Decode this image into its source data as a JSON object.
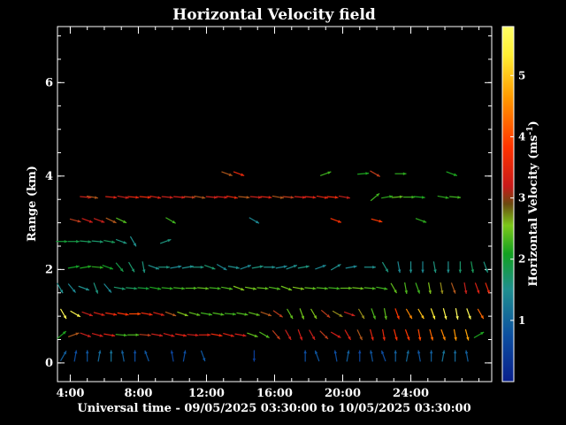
{
  "chart_data": {
    "type": "scatter",
    "title": "Horizontal Velocity field",
    "xlabel": "Universal time - 09/05/2025 03:30:00 to 10/05/2025 03:30:00",
    "ylabel": "Range (km)",
    "colorbar_label": "Horizontal Velocity (ms",
    "colorbar_label_sup": "-1",
    "colorbar_label_end": ")",
    "x_ticks": [
      {
        "value": 4,
        "label": "4:00"
      },
      {
        "value": 8,
        "label": "8:00"
      },
      {
        "value": 12,
        "label": "12:00"
      },
      {
        "value": 16,
        "label": "16:00"
      },
      {
        "value": 20,
        "label": "20:00"
      },
      {
        "value": 24,
        "label": "24:00"
      }
    ],
    "y_ticks": [
      {
        "value": 0,
        "label": "0"
      },
      {
        "value": 2,
        "label": "2"
      },
      {
        "value": 4,
        "label": "4"
      },
      {
        "value": 6,
        "label": "6"
      }
    ],
    "colorbar_ticks": [
      {
        "value": 1,
        "label": "1"
      },
      {
        "value": 2,
        "label": "2"
      },
      {
        "value": 3,
        "label": "3"
      },
      {
        "value": 4,
        "label": "4"
      },
      {
        "value": 5,
        "label": "5"
      }
    ],
    "xlim": [
      3.25,
      28.75
    ],
    "ylim": [
      -0.4,
      7.2
    ],
    "clim": [
      0,
      5.8
    ],
    "grid": false,
    "colors": {
      "background": "#000000",
      "axes": "#ffffff",
      "colormap": [
        "#0a1f8c",
        "#0c4fa0",
        "#1f8f8f",
        "#12a020",
        "#7cc81a",
        "#c81a1a",
        "#ff3300",
        "#ff9900",
        "#ffee33",
        "#ffff66"
      ]
    },
    "arrow_rows": [
      {
        "range": 4.05,
        "x": [
          13.2,
          13.9,
          19.0,
          21.2,
          21.9,
          23.4,
          26.4
        ],
        "speed": [
          3.0,
          3.6,
          2.2,
          2.0,
          3.1,
          2.1,
          2.0
        ],
        "dir_deg": [
          -20,
          -20,
          20,
          5,
          -30,
          0,
          -20
        ]
      },
      {
        "range": 3.55,
        "x": [
          4.9,
          5.3,
          6.4,
          7.1,
          7.7,
          8.4,
          9.0,
          9.7,
          10.4,
          11.0,
          11.6,
          12.3,
          12.9,
          13.5,
          14.2,
          14.9,
          15.5,
          16.2,
          16.8,
          17.5,
          18.1,
          18.8,
          19.4,
          20.1,
          21.9,
          22.6,
          23.2,
          23.9,
          24.5,
          25.9,
          26.6
        ],
        "speed": [
          3.2,
          3.0,
          3.4,
          3.2,
          3.5,
          3.6,
          3.4,
          3.2,
          3.3,
          3.1,
          3.0,
          3.2,
          3.3,
          3.6,
          3.0,
          3.2,
          3.4,
          3.0,
          3.1,
          3.3,
          3.4,
          3.5,
          3.6,
          3.2,
          2.2,
          2.1,
          2.4,
          2.2,
          2.0,
          2.1,
          2.2
        ],
        "dir_deg": [
          -5,
          -10,
          -5,
          -10,
          -5,
          -5,
          -10,
          -5,
          -5,
          -5,
          -10,
          -5,
          -5,
          -10,
          -5,
          -5,
          -5,
          -10,
          -5,
          -5,
          -5,
          -10,
          -5,
          -10,
          40,
          10,
          5,
          0,
          -5,
          -10,
          -5
        ]
      },
      {
        "range": 3.05,
        "x": [
          4.3,
          5.0,
          5.7,
          6.4,
          7.0,
          9.9,
          14.8,
          19.6,
          22.0,
          24.6
        ],
        "speed": [
          3.1,
          3.3,
          3.2,
          3.0,
          2.3,
          2.2,
          1.2,
          3.8,
          3.9,
          2.1
        ],
        "dir_deg": [
          -15,
          -20,
          -20,
          -25,
          -25,
          -30,
          -30,
          -20,
          -15,
          -20
        ]
      },
      {
        "range": 2.6,
        "x": [
          3.5,
          4.2,
          4.9,
          5.6,
          6.3,
          7.0,
          7.7,
          9.6
        ],
        "speed": [
          1.8,
          1.7,
          1.6,
          1.5,
          1.6,
          1.4,
          1.3,
          1.4
        ],
        "dir_deg": [
          0,
          0,
          -5,
          -5,
          -10,
          -20,
          -60,
          20
        ]
      },
      {
        "range": 2.05,
        "x": [
          4.2,
          4.9,
          5.6,
          6.2,
          6.9,
          7.6,
          8.3,
          8.9,
          9.5,
          10.2,
          10.9,
          11.5,
          12.2,
          12.9,
          13.6,
          14.3,
          15.0,
          15.7,
          16.4,
          17.0,
          17.7,
          18.7,
          19.6,
          20.5,
          21.6,
          22.5,
          23.3,
          24.0,
          24.7,
          25.4,
          26.2,
          26.9,
          27.6,
          28.4
        ],
        "speed": [
          1.9,
          2.0,
          2.1,
          1.9,
          1.7,
          1.5,
          1.4,
          1.3,
          1.4,
          1.2,
          1.3,
          1.4,
          1.5,
          1.2,
          1.3,
          1.2,
          1.4,
          1.3,
          1.2,
          1.3,
          1.4,
          1.2,
          1.3,
          1.2,
          1.3,
          1.4,
          1.2,
          1.3,
          1.2,
          1.4,
          1.3,
          1.5,
          1.6,
          1.4
        ],
        "dir_deg": [
          10,
          10,
          -5,
          -20,
          -50,
          -60,
          -80,
          -20,
          0,
          10,
          10,
          0,
          -20,
          -30,
          -10,
          20,
          10,
          0,
          10,
          20,
          10,
          20,
          30,
          10,
          0,
          -60,
          -80,
          -90,
          -90,
          -80,
          -90,
          -90,
          -80,
          -70
        ]
      },
      {
        "range": 1.6,
        "x": [
          3.4,
          4.1,
          4.8,
          5.5,
          6.2,
          6.9,
          7.6,
          8.3,
          9.0,
          9.7,
          10.4,
          11.1,
          11.8,
          12.5,
          13.2,
          13.9,
          14.6,
          15.3,
          16.0,
          16.7,
          17.4,
          18.1,
          18.8,
          19.5,
          20.2,
          20.9,
          21.6,
          22.3,
          23.0,
          23.7,
          24.4,
          25.1,
          25.8,
          26.5,
          27.2,
          27.9,
          28.5
        ],
        "speed": [
          1.3,
          1.2,
          1.3,
          1.4,
          1.2,
          1.5,
          1.6,
          1.8,
          2.0,
          2.1,
          2.2,
          2.3,
          2.4,
          2.2,
          2.3,
          2.6,
          2.5,
          2.4,
          2.3,
          2.5,
          2.6,
          2.4,
          2.3,
          2.2,
          2.4,
          2.5,
          2.3,
          2.2,
          2.4,
          2.3,
          2.2,
          2.6,
          2.8,
          3.0,
          3.2,
          3.4,
          3.6
        ],
        "dir_deg": [
          -60,
          -50,
          -20,
          -70,
          -50,
          -10,
          -5,
          -5,
          -10,
          -5,
          -5,
          0,
          -5,
          -5,
          -10,
          -20,
          -10,
          -5,
          -10,
          -20,
          -10,
          -5,
          -5,
          -5,
          0,
          -5,
          -5,
          -10,
          -60,
          -80,
          -70,
          -80,
          -80,
          -70,
          -80,
          -70,
          -70
        ]
      },
      {
        "range": 1.05,
        "x": [
          3.6,
          4.3,
          5.0,
          5.7,
          6.4,
          7.1,
          7.8,
          8.5,
          9.2,
          9.9,
          10.6,
          11.3,
          12.0,
          12.7,
          13.4,
          14.1,
          14.8,
          15.5,
          16.2,
          16.9,
          17.6,
          18.3,
          19.0,
          19.7,
          20.4,
          21.1,
          21.8,
          22.5,
          23.2,
          23.9,
          24.6,
          25.3,
          26.0,
          26.7,
          27.4,
          28.1
        ],
        "speed": [
          5.6,
          5.5,
          3.2,
          3.4,
          3.6,
          3.8,
          4.0,
          3.6,
          3.4,
          3.0,
          2.6,
          2.4,
          2.2,
          2.3,
          2.2,
          2.3,
          2.4,
          3.0,
          3.1,
          2.4,
          2.5,
          2.6,
          3.1,
          2.8,
          3.2,
          2.8,
          2.3,
          2.4,
          3.9,
          4.4,
          4.8,
          5.2,
          5.5,
          5.7,
          5.6,
          4.2
        ],
        "dir_deg": [
          -60,
          -30,
          -20,
          -15,
          -10,
          -10,
          0,
          -10,
          -15,
          -20,
          -20,
          -15,
          -10,
          -10,
          -5,
          -10,
          -15,
          -20,
          -35,
          -60,
          -70,
          -60,
          -40,
          -30,
          -20,
          -60,
          -70,
          -80,
          -70,
          -60,
          -60,
          -70,
          -75,
          -80,
          -70,
          -60
        ]
      },
      {
        "range": 0.6,
        "x": [
          3.5,
          4.2,
          4.9,
          5.6,
          6.3,
          7.0,
          7.7,
          8.4,
          9.1,
          9.8,
          10.5,
          11.2,
          11.9,
          12.6,
          13.3,
          14.0,
          14.7,
          15.4,
          16.1,
          16.8,
          17.5,
          18.2,
          18.9,
          19.6,
          20.3,
          21.0,
          21.7,
          22.4,
          23.1,
          23.8,
          24.5,
          25.2,
          25.9,
          26.6,
          27.3,
          28.0
        ],
        "speed": [
          2.0,
          3.0,
          3.2,
          3.3,
          3.4,
          2.2,
          2.3,
          3.1,
          3.2,
          3.3,
          3.4,
          3.3,
          3.4,
          3.6,
          3.4,
          3.3,
          2.4,
          2.3,
          3.1,
          3.2,
          3.3,
          3.2,
          3.1,
          3.3,
          3.4,
          3.0,
          3.5,
          3.6,
          3.8,
          3.9,
          4.0,
          4.2,
          4.4,
          4.5,
          4.6,
          2.0
        ],
        "dir_deg": [
          40,
          20,
          -20,
          -15,
          -10,
          -5,
          0,
          -5,
          -10,
          -15,
          -10,
          -5,
          0,
          -10,
          -15,
          -10,
          -20,
          -30,
          -50,
          -60,
          -70,
          -60,
          -45,
          -30,
          -60,
          -65,
          -75,
          -80,
          -75,
          -70,
          -80,
          -75,
          -70,
          -80,
          -75,
          30
        ]
      },
      {
        "range": 0.15,
        "x": [
          3.6,
          4.3,
          5.0,
          5.7,
          6.4,
          7.1,
          7.8,
          8.5,
          10.0,
          10.7,
          11.8,
          14.8,
          17.8,
          18.5,
          19.6,
          20.3,
          21.0,
          21.7,
          22.4,
          23.1,
          23.8,
          24.5,
          25.2,
          25.9,
          26.6,
          27.3
        ],
        "speed": [
          0.8,
          0.6,
          0.7,
          0.9,
          1.0,
          0.8,
          0.6,
          0.7,
          0.5,
          0.6,
          0.7,
          0.4,
          0.6,
          0.7,
          0.6,
          0.8,
          0.5,
          0.7,
          0.6,
          0.8,
          0.9,
          0.7,
          0.8,
          1.0,
          0.9,
          0.8
        ],
        "dir_deg": [
          60,
          80,
          90,
          80,
          90,
          100,
          90,
          110,
          100,
          80,
          -70,
          -90,
          90,
          110,
          100,
          80,
          90,
          100,
          110,
          90,
          80,
          100,
          90,
          80,
          90,
          100
        ]
      }
    ]
  }
}
